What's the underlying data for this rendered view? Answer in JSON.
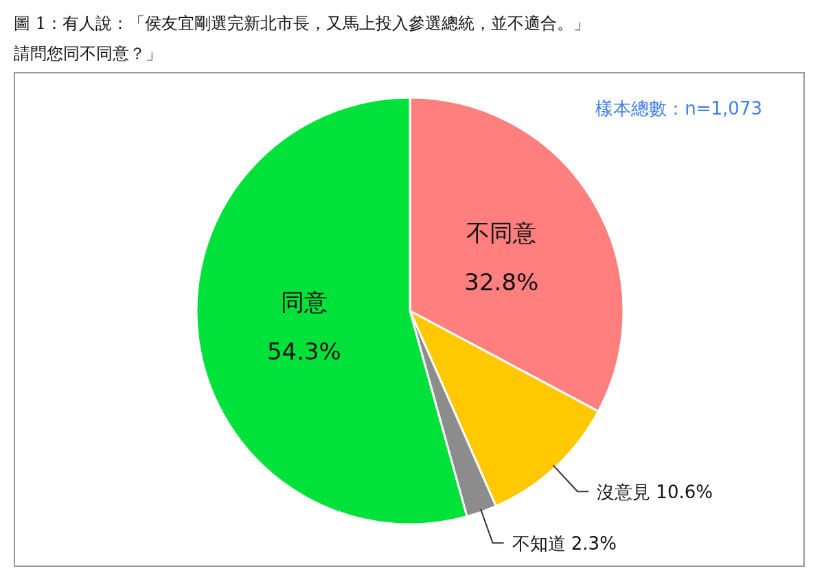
{
  "chart_data": {
    "type": "pie",
    "title": "圖 1：有人說：「侯友宜剛選完新北市長，又馬上投入參選總統，並不適合。」",
    "subtitle": "請問您同不同意？」",
    "annotations": [
      "樣本總數：n=1,073"
    ],
    "categories": [
      "不同意",
      "沒意見",
      "不知道",
      "同意"
    ],
    "values": [
      32.8,
      10.6,
      2.3,
      54.3
    ],
    "colors": [
      "#ff7f7f",
      "#ffc800",
      "#8c8c8c",
      "#00e13a"
    ],
    "value_labels": [
      "32.8%",
      "10.6%",
      "2.3%",
      "54.3%"
    ]
  }
}
